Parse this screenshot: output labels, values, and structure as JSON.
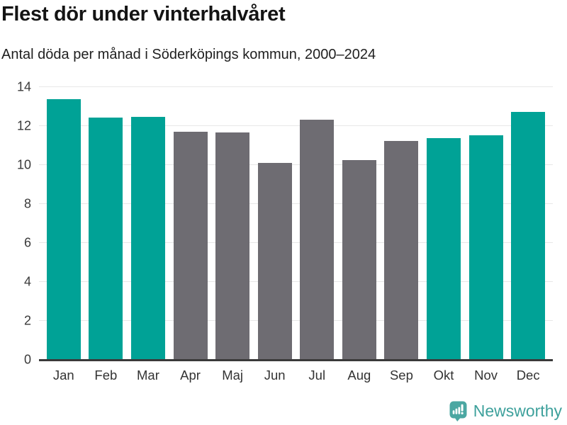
{
  "header": {
    "title": "Flest dör under vinterhalvåret",
    "subtitle": "Antal döda per månad i Söderköpings kommun, 2000–2024"
  },
  "chart_data": {
    "type": "bar",
    "title": "Flest dör under vinterhalvåret",
    "subtitle": "Antal döda per månad i Söderköpings kommun, 2000–2024",
    "categories": [
      "Jan",
      "Feb",
      "Mar",
      "Apr",
      "Maj",
      "Jun",
      "Jul",
      "Aug",
      "Sep",
      "Okt",
      "Nov",
      "Dec"
    ],
    "values": [
      13.4,
      12.44,
      12.48,
      11.72,
      11.68,
      10.12,
      12.32,
      10.24,
      11.24,
      11.4,
      11.52,
      12.72
    ],
    "highlighted": [
      true,
      true,
      true,
      false,
      false,
      false,
      false,
      false,
      false,
      true,
      true,
      true
    ],
    "colors": {
      "highlight": "#00a296",
      "default": "#6e6c72"
    },
    "xlabel": "",
    "ylabel": "",
    "ylim": [
      0,
      14
    ],
    "yticks": [
      0,
      2,
      4,
      6,
      8,
      10,
      12,
      14
    ],
    "grid": "horizontal",
    "legend": "none"
  },
  "footer": {
    "brand": "Newsworthy",
    "brand_color": "#3ea19c",
    "logo_icon": "bar-chart-speech-bubble-icon"
  }
}
